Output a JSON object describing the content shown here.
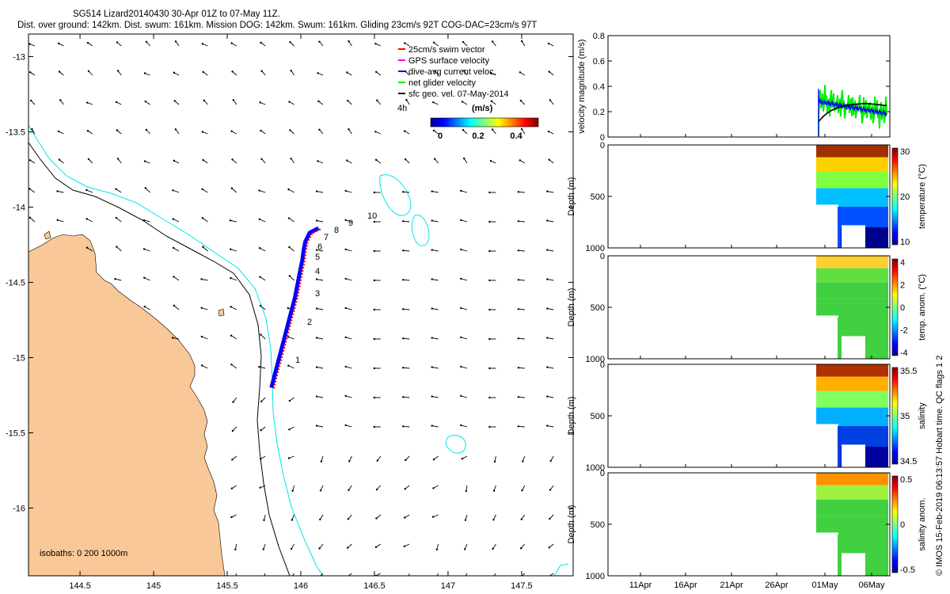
{
  "header": {
    "title": "SG514 Lizard20140430 30-Apr 01Z to 07-May 11Z.",
    "subtitle": "Dist. over ground: 142km. Dist. swum: 161km. Mission DOG: 142km. Swum: 161km. Gliding 23cm/s 92T COG-DAC=23cm/s 97T"
  },
  "side_note": "© IMOS 15-Feb-2019 06:13:57 Hobart time. QC flags 1  2",
  "colors": {
    "land": "#F9C898",
    "isobath_200": "#000000",
    "isobath_1000": "#00E5EE",
    "swim_vector": "#FF0000",
    "gps_velocity": "#FF00FF",
    "dive_avg_current": "#0000FF",
    "net_glider_velocity": "#00EE00",
    "sfc_geo_velocity": "#000000"
  },
  "map": {
    "isobath_label": "isobaths: 0   200  1000m",
    "legend": [
      {
        "label": "25cm/s swim vector",
        "color": "#FF0000"
      },
      {
        "label": "GPS surface velocity",
        "color": "#FF00FF"
      },
      {
        "label": "dive-avg current veloc.",
        "color": "#0000FF"
      },
      {
        "label": "net glider velocity",
        "color": "#00EE00"
      },
      {
        "label": "sfc geo. vel. 07-May-2014",
        "color": "#000000"
      }
    ],
    "vector_scale_label": "4h",
    "colorbar_title": "(m/s)",
    "colorbar_ticks": [
      "0",
      "0.2",
      "0.4"
    ],
    "day_labels": [
      "1",
      "2",
      "3",
      "4",
      "5",
      "6",
      "7",
      "8",
      "9",
      "10"
    ]
  },
  "chart_data": [
    {
      "type": "line",
      "name": "map",
      "x_ticks": [
        "144.5",
        "145",
        "145.5",
        "146",
        "146.5",
        "147",
        "147.5"
      ],
      "y_ticks": [
        "-13",
        "-13.5",
        "-14",
        "-14.5",
        "-15",
        "-15.5",
        "-16"
      ],
      "xlim": [
        144.15,
        147.85
      ],
      "ylim": [
        -16.45,
        -12.85
      ],
      "glider_track": {
        "x": [
          145.8,
          145.84,
          145.88,
          145.92,
          145.96,
          145.99,
          146.01,
          146.02,
          146.03,
          146.06,
          146.12
        ],
        "y": [
          -15.2,
          -15.05,
          -14.9,
          -14.75,
          -14.6,
          -14.45,
          -14.35,
          -14.28,
          -14.23,
          -14.17,
          -14.14
        ]
      }
    },
    {
      "type": "line",
      "name": "velocity",
      "ylabel": "velocity magnitude (m/s)",
      "y_ticks": [
        "0",
        "0.2",
        "0.4",
        "0.6",
        "0.8"
      ],
      "ylim": [
        0,
        0.8
      ]
    },
    {
      "type": "heatmap",
      "name": "temperature",
      "ylabel": "Depth (m)",
      "y_ticks": [
        "0",
        "500",
        "1000"
      ],
      "cbar_label": "temperature (°C)",
      "cbar_ticks": [
        "30",
        "20",
        "10"
      ]
    },
    {
      "type": "heatmap",
      "name": "temperature anomaly",
      "ylabel": "Depth (m)",
      "y_ticks": [
        "0",
        "500",
        "1000"
      ],
      "cbar_label": "temp. anom. (°C)",
      "cbar_ticks": [
        "4",
        "2",
        "0",
        "-2",
        "-4"
      ]
    },
    {
      "type": "heatmap",
      "name": "salinity",
      "ylabel": "Depth (m)",
      "y_ticks": [
        "0",
        "500",
        "1000"
      ],
      "cbar_label": "salinity",
      "cbar_ticks": [
        "35.5",
        "35",
        "34.5"
      ]
    },
    {
      "type": "heatmap",
      "name": "salinity anomaly",
      "ylabel": "Depth (m)",
      "y_ticks": [
        "0",
        "500",
        "1000"
      ],
      "x_ticks": [
        "11Apr",
        "16Apr",
        "21Apr",
        "26Apr",
        "01May",
        "06May"
      ],
      "cbar_label": "salinity anom.",
      "cbar_ticks": [
        "0.5",
        "0",
        "-0.5"
      ]
    }
  ]
}
